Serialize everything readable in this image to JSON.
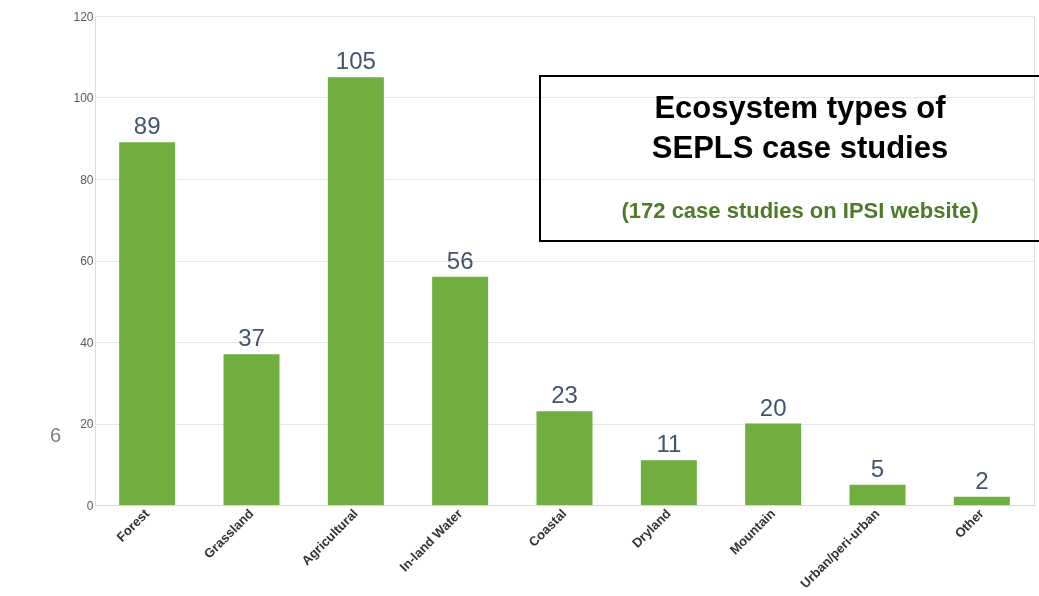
{
  "chart_data": {
    "type": "bar",
    "title": "Ecosystem types of SEPLS case studies",
    "subtitle": "(172 case studies on IPSI website)",
    "categories": [
      "Forest",
      "Grassland",
      "Agricultural",
      "In-land Water",
      "Coastal",
      "Dryland",
      "Mountain",
      "Urban/peri-urban",
      "Other"
    ],
    "values": [
      89,
      37,
      105,
      56,
      23,
      11,
      20,
      5,
      2
    ],
    "color": "#6fae3f",
    "ylim": [
      0,
      120
    ],
    "yticks": [
      0,
      20,
      40,
      60,
      80,
      100,
      120
    ],
    "grid": "y",
    "data_labels": true,
    "annotations": [
      "6"
    ]
  }
}
